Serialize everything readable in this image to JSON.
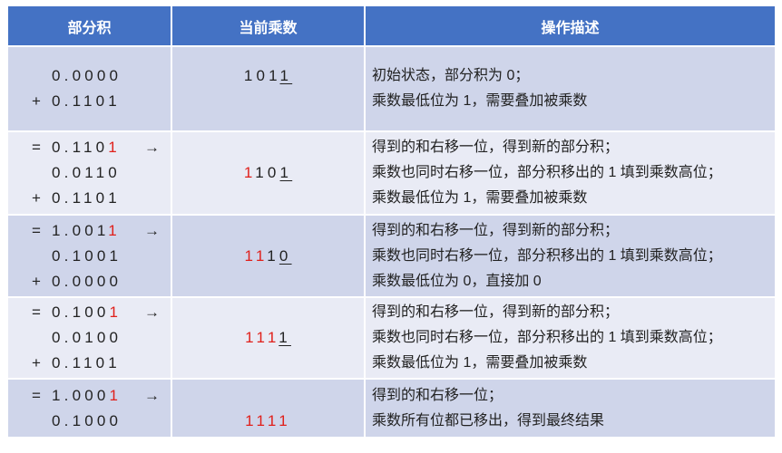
{
  "headers": [
    "部分积",
    "当前乘数",
    "操作描述"
  ],
  "colors": {
    "header": "#4472C4",
    "row_odd": "#CFD5EA",
    "row_even": "#E9EBF5",
    "highlight": "#E0201B"
  },
  "rows": [
    {
      "partial": [
        {
          "prefix": "",
          "segments": [
            {
              "t": "0.0000"
            }
          ],
          "arrow": ""
        },
        {
          "prefix": "+",
          "segments": [
            {
              "t": "0.1101"
            }
          ],
          "arrow": ""
        }
      ],
      "multiplier": [
        {
          "t": "101"
        },
        {
          "t": "1",
          "u": true
        }
      ],
      "desc": [
        "初始状态，部分积为 0；",
        "乘数最低位为 1，需要叠加被乘数"
      ]
    },
    {
      "partial": [
        {
          "prefix": "=",
          "segments": [
            {
              "t": "0.110"
            },
            {
              "t": "1",
              "red": true
            }
          ],
          "arrow": "→"
        },
        {
          "prefix": "",
          "segments": [
            {
              "t": "0.0110"
            }
          ],
          "arrow": ""
        },
        {
          "prefix": "+",
          "segments": [
            {
              "t": "0.1101"
            }
          ],
          "arrow": ""
        }
      ],
      "multiplier": [
        {
          "t": "1",
          "red": true
        },
        {
          "t": "10"
        },
        {
          "t": "1",
          "u": true
        }
      ],
      "desc": [
        "得到的和右移一位，得到新的部分积；",
        "乘数也同时右移一位，部分积移出的 1 填到乘数高位；",
        "乘数最低位为 1，需要叠加被乘数"
      ]
    },
    {
      "partial": [
        {
          "prefix": "=",
          "segments": [
            {
              "t": "1.001"
            },
            {
              "t": "1",
              "red": true
            }
          ],
          "arrow": "→"
        },
        {
          "prefix": "",
          "segments": [
            {
              "t": "0.1001"
            }
          ],
          "arrow": ""
        },
        {
          "prefix": "+",
          "segments": [
            {
              "t": "0.0000"
            }
          ],
          "arrow": ""
        }
      ],
      "multiplier": [
        {
          "t": "11",
          "red": true
        },
        {
          "t": "1"
        },
        {
          "t": "0",
          "u": true
        }
      ],
      "desc": [
        "得到的和右移一位，得到新的部分积；",
        "乘数也同时右移一位，部分积移出的 1 填到乘数高位；",
        "乘数最低位为 0，直接加 0"
      ]
    },
    {
      "partial": [
        {
          "prefix": "=",
          "segments": [
            {
              "t": "0.100"
            },
            {
              "t": "1",
              "red": true
            }
          ],
          "arrow": "→"
        },
        {
          "prefix": "",
          "segments": [
            {
              "t": "0.0100"
            }
          ],
          "arrow": ""
        },
        {
          "prefix": "+",
          "segments": [
            {
              "t": "0.1101"
            }
          ],
          "arrow": ""
        }
      ],
      "multiplier": [
        {
          "t": "111",
          "red": true
        },
        {
          "t": "1",
          "u": true
        }
      ],
      "desc": [
        "得到的和右移一位，得到新的部分积；",
        "乘数也同时右移一位，部分积移出的 1 填到乘数高位；",
        "乘数最低位为 1，需要叠加被乘数"
      ]
    },
    {
      "partial": [
        {
          "prefix": "=",
          "segments": [
            {
              "t": "1.000"
            },
            {
              "t": "1",
              "red": true
            }
          ],
          "arrow": "→"
        },
        {
          "prefix": "",
          "segments": [
            {
              "t": "0.1000"
            }
          ],
          "arrow": ""
        }
      ],
      "multiplier": [
        {
          "t": "1111",
          "red": true
        }
      ],
      "desc": [
        "得到的和右移一位；",
        "乘数所有位都已移出，得到最终结果"
      ]
    }
  ]
}
